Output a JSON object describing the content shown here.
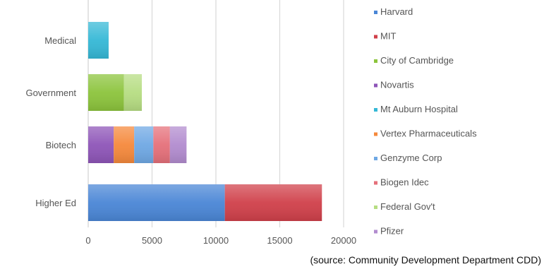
{
  "chart_data": {
    "type": "bar",
    "orientation": "horizontal",
    "stacked": true,
    "categories": [
      "Medical",
      "Government",
      "Biotech",
      "Higher Ed"
    ],
    "xlim": [
      0,
      20000
    ],
    "xticks": [
      0,
      5000,
      10000,
      15000,
      20000
    ],
    "grid": true,
    "legend_position": "right",
    "series": [
      {
        "name": "Harvard",
        "color": "#4a86d6",
        "values": [
          0,
          0,
          0,
          10700
        ]
      },
      {
        "name": "MIT",
        "color": "#d0404a",
        "values": [
          0,
          0,
          0,
          7600
        ]
      },
      {
        "name": "City of Cambridge",
        "color": "#8cc43c",
        "values": [
          0,
          2800,
          0,
          0
        ]
      },
      {
        "name": "Novartis",
        "color": "#8e55b8",
        "values": [
          0,
          0,
          2000,
          0
        ]
      },
      {
        "name": "Mt Auburn Hospital",
        "color": "#35b8d6",
        "values": [
          1600,
          0,
          0,
          0
        ]
      },
      {
        "name": "Vertex Pharmaceuticals",
        "color": "#f5893c",
        "values": [
          0,
          0,
          1600,
          0
        ]
      },
      {
        "name": "Genzyme Corp",
        "color": "#6fa8e4",
        "values": [
          0,
          0,
          1500,
          0
        ]
      },
      {
        "name": "Biogen Idec",
        "color": "#e5707a",
        "values": [
          0,
          0,
          1300,
          0
        ]
      },
      {
        "name": "Federal Gov't",
        "color": "#b6dd82",
        "values": [
          0,
          1400,
          0,
          0
        ]
      },
      {
        "name": "Pfizer",
        "color": "#b28ccf",
        "values": [
          0,
          0,
          1300,
          0
        ]
      }
    ]
  },
  "source_note": "(source: Community Development Department CDD)"
}
